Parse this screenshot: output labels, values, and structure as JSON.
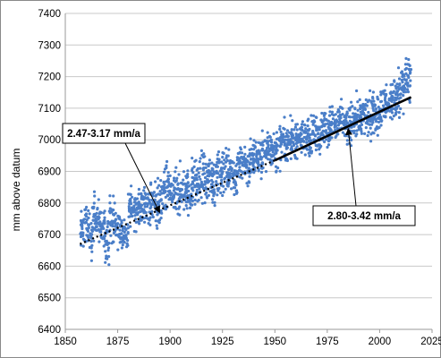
{
  "chart_data": {
    "type": "scatter",
    "ylabel": "mm above datum",
    "xlabel": "",
    "xlim": [
      1850,
      2025
    ],
    "ylim": [
      6400,
      7400
    ],
    "xticks": [
      "1850",
      "1875",
      "1900",
      "1925",
      "1950",
      "1975",
      "2000",
      "2025"
    ],
    "yticks": [
      "6400",
      "6500",
      "6600",
      "6700",
      "6800",
      "6900",
      "7000",
      "7100",
      "7200",
      "7300",
      "7400"
    ],
    "grid": "horizontal",
    "point_color": "#4a7ec8",
    "series": [
      {
        "x": [
          1857,
          1859,
          1861,
          1863,
          1865,
          1867,
          1869,
          1871,
          1873,
          1875,
          1877,
          1880,
          1884,
          1888,
          1892,
          1894,
          1896,
          1898,
          1900,
          1902,
          1904,
          1906,
          1908,
          1910,
          1912,
          1914,
          1916,
          1918,
          1920,
          1922,
          1924,
          1926,
          1928,
          1930,
          1932,
          1934,
          1936,
          1938,
          1940,
          1942,
          1944,
          1946,
          1948,
          1950,
          1952,
          1954,
          1956,
          1958,
          1960,
          1962,
          1964,
          1966,
          1968,
          1970,
          1972,
          1974,
          1976,
          1978,
          1980,
          1982,
          1984,
          1986,
          1988,
          1990,
          1992,
          1994,
          1996,
          1998,
          2000,
          2002,
          2004,
          2006,
          2008,
          2010,
          2012,
          2014
        ],
        "y": [
          6710,
          6730,
          6700,
          6760,
          6740,
          6720,
          6690,
          6750,
          6730,
          6720,
          6700,
          6780,
          6790,
          6800,
          6790,
          6800,
          6820,
          6840,
          6830,
          6820,
          6840,
          6850,
          6830,
          6860,
          6860,
          6880,
          6870,
          6890,
          6860,
          6890,
          6900,
          6900,
          6910,
          6880,
          6920,
          6930,
          6920,
          6940,
          6950,
          6940,
          6960,
          6970,
          6980,
          6960,
          6980,
          6990,
          7000,
          6990,
          7010,
          7000,
          7020,
          7010,
          7030,
          7020,
          7040,
          7030,
          7050,
          7040,
          7060,
          7050,
          7040,
          7060,
          7070,
          7060,
          7080,
          7070,
          7090,
          7080,
          7100,
          7110,
          7120,
          7130,
          7150,
          7170,
          7190,
          7200
        ],
        "spread": [
          60,
          70,
          80,
          75,
          65,
          70,
          80,
          75,
          70,
          65,
          60,
          60,
          70,
          70,
          75,
          80,
          80,
          80,
          80,
          80,
          80,
          80,
          80,
          80,
          80,
          75,
          75,
          75,
          75,
          75,
          70,
          70,
          70,
          70,
          70,
          70,
          70,
          70,
          65,
          65,
          65,
          65,
          65,
          65,
          65,
          60,
          60,
          60,
          60,
          60,
          60,
          60,
          60,
          60,
          60,
          60,
          60,
          60,
          60,
          60,
          65,
          65,
          65,
          65,
          65,
          65,
          65,
          70,
          70,
          70,
          70,
          75,
          75,
          75,
          80,
          80
        ]
      }
    ],
    "trend_lines": [
      {
        "style": "dotted",
        "x": [
          1857,
          1950
        ],
        "y": [
          6670,
          6935
        ]
      },
      {
        "style": "solid",
        "x": [
          1950,
          2015
        ],
        "y": [
          6935,
          7135
        ]
      }
    ],
    "annotations": [
      {
        "text": "2.47-3.17 mm/a",
        "target_x": 1895,
        "target_y": 6770
      },
      {
        "text": "2.80-3.42 mm/a",
        "target_x": 1985,
        "target_y": 7035
      }
    ]
  }
}
